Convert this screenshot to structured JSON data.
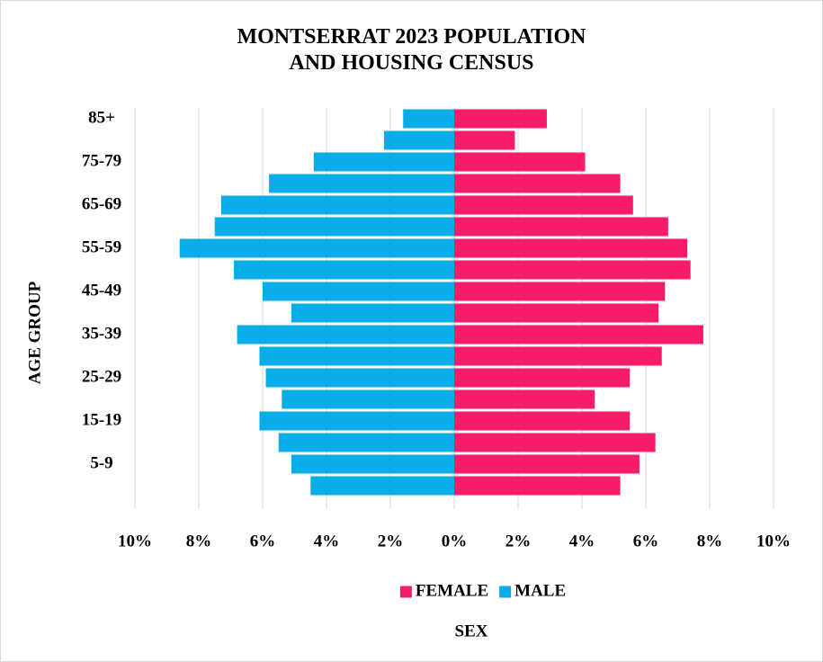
{
  "chart_data": {
    "type": "pyramid",
    "title": "MONTSERRAT 2023 POPULATION AND HOUSING CENSUS",
    "xlabel": "SEX",
    "ylabel": "AGE GROUP",
    "categories": [
      null,
      "5-9",
      null,
      "15-19",
      null,
      "25-29",
      null,
      "35-39",
      null,
      "45-49",
      null,
      "55-59",
      null,
      "65-69",
      null,
      "75-79",
      null,
      "85+"
    ],
    "series": [
      {
        "name": "FEMALE",
        "color": "#f71b6b",
        "values": [
          5.2,
          5.8,
          6.3,
          5.5,
          4.4,
          5.5,
          6.5,
          7.8,
          6.4,
          6.6,
          7.4,
          7.3,
          6.7,
          5.6,
          5.2,
          4.1,
          1.9,
          2.9
        ]
      },
      {
        "name": "MALE",
        "color": "#08ade8",
        "values": [
          -4.5,
          -5.1,
          -5.5,
          -6.1,
          -5.4,
          -5.9,
          -6.1,
          -6.8,
          -5.1,
          -6.0,
          -6.9,
          -8.6,
          -7.5,
          -7.3,
          -5.8,
          -4.4,
          -2.2,
          -1.6
        ]
      }
    ],
    "xlim": [
      -10,
      10
    ],
    "xticks": [
      {
        "value": -10,
        "label": "10%"
      },
      {
        "value": -8,
        "label": "8%"
      },
      {
        "value": -6,
        "label": "6%"
      },
      {
        "value": -4,
        "label": "4%"
      },
      {
        "value": -2,
        "label": "2%"
      },
      {
        "value": 0,
        "label": "0%"
      },
      {
        "value": 2,
        "label": "2%"
      },
      {
        "value": 4,
        "label": "4%"
      },
      {
        "value": 6,
        "label": "6%"
      },
      {
        "value": 8,
        "label": "8%"
      },
      {
        "value": 10,
        "label": "10%"
      }
    ],
    "grid": true,
    "legend": "bottom"
  }
}
